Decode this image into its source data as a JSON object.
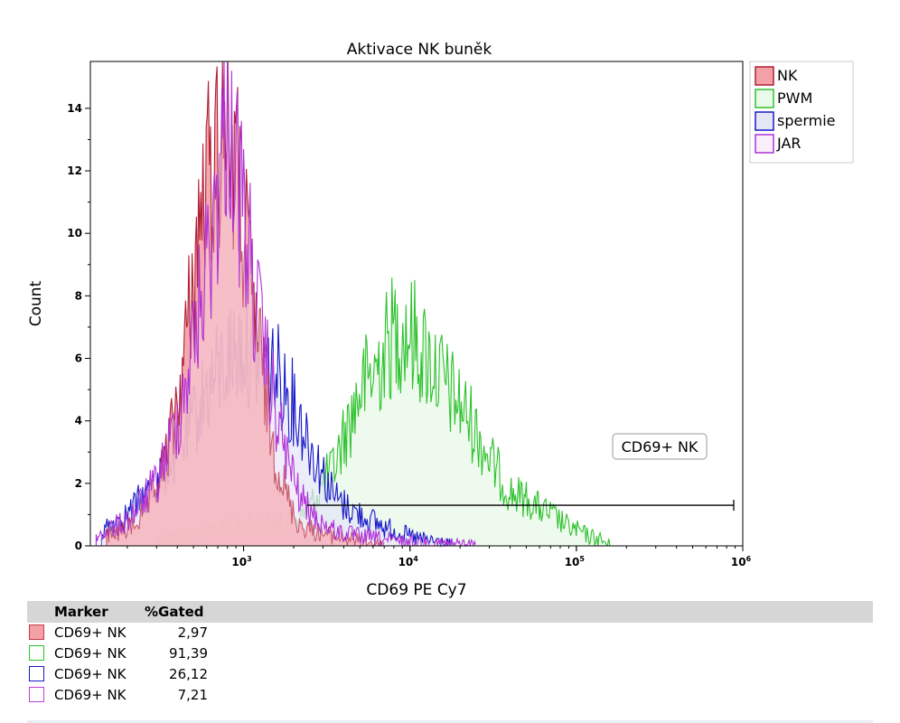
{
  "chart_data": {
    "type": "area",
    "title": "Aktivace NK buněk",
    "xlabel": "CD69 PE Cy7",
    "ylabel": "Count",
    "x_scale": "log",
    "xlim": [
      120,
      1000000
    ],
    "ylim": [
      0,
      15.5
    ],
    "y_ticks": [
      0,
      2,
      4,
      6,
      8,
      10,
      12,
      14
    ],
    "y_tick_labels": [
      "0",
      "2",
      "4",
      "6",
      "8",
      "10",
      "12",
      "14"
    ],
    "x_ticks": [
      1000,
      10000,
      100000,
      1000000
    ],
    "x_tick_labels": [
      {
        "base": "10",
        "exp": "3"
      },
      {
        "base": "10",
        "exp": "4"
      },
      {
        "base": "10",
        "exp": "5"
      },
      {
        "base": "10",
        "exp": "6"
      }
    ],
    "legend_position": "top-right",
    "series": [
      {
        "name": "NK",
        "stroke": "#b21e34",
        "fill": "#f3a0a6",
        "fill_opacity": 0.9,
        "x": [
          150,
          200,
          250,
          300,
          350,
          400,
          450,
          500,
          550,
          600,
          650,
          700,
          750,
          800,
          850,
          900,
          950,
          1000,
          1100,
          1200,
          1300,
          1400,
          1500,
          1700,
          1900,
          2100,
          2300,
          2600,
          3000,
          3500,
          4000,
          4500,
          5000,
          6000,
          7000
        ],
        "y": [
          0.3,
          0.5,
          1.0,
          1.8,
          3.0,
          4.5,
          6.5,
          8.5,
          10.5,
          11.5,
          12.3,
          12.8,
          13.5,
          14.3,
          13.0,
          12.0,
          11.0,
          10.0,
          8.5,
          7.0,
          5.5,
          4.5,
          3.2,
          2.2,
          1.3,
          0.8,
          0.6,
          0.5,
          0.4,
          0.3,
          0.25,
          0.2,
          0.15,
          0.1,
          0
        ]
      },
      {
        "name": "PWM",
        "stroke": "#2ec22e",
        "fill": "#eaf9ea",
        "fill_opacity": 0.8,
        "x": [
          300,
          500,
          800,
          1200,
          1600,
          2000,
          2500,
          3000,
          3500,
          4000,
          4500,
          5000,
          6000,
          7000,
          8000,
          9000,
          10000,
          11000,
          12000,
          13000,
          15000,
          17000,
          20000,
          23000,
          26000,
          30000,
          35000,
          40000,
          50000,
          60000,
          70000,
          80000,
          90000,
          100000,
          120000,
          140000,
          160000
        ],
        "y": [
          0.2,
          0.4,
          0.6,
          0.7,
          0.7,
          0.8,
          1.2,
          2.0,
          2.5,
          3.5,
          4.2,
          5.0,
          5.5,
          6.2,
          6.8,
          7.0,
          6.8,
          6.5,
          6.2,
          6.0,
          5.5,
          5.0,
          4.5,
          4.0,
          3.5,
          2.8,
          2.2,
          1.7,
          1.5,
          1.2,
          1.0,
          0.8,
          0.6,
          0.5,
          0.3,
          0.2,
          0
        ]
      },
      {
        "name": "spermie",
        "stroke": "#1818c8",
        "fill": "#e4e6f6",
        "fill_opacity": 0.7,
        "x": [
          140,
          200,
          300,
          400,
          500,
          600,
          700,
          800,
          900,
          1000,
          1200,
          1400,
          1700,
          2000,
          2300,
          2600,
          3000,
          3500,
          4000,
          5000,
          6000,
          7000,
          8000,
          10000,
          12000,
          14000,
          16000,
          18000
        ],
        "y": [
          0.5,
          1.0,
          2.0,
          3.0,
          4.0,
          5.0,
          5.5,
          6.0,
          6.2,
          6.5,
          6.0,
          5.8,
          5.3,
          4.5,
          3.8,
          3.0,
          2.3,
          1.6,
          1.3,
          1.0,
          0.8,
          0.6,
          0.5,
          0.3,
          0.2,
          0.15,
          0.1,
          0
        ]
      },
      {
        "name": "JAR",
        "stroke": "#b032d8",
        "fill": "#fbeefb",
        "fill_opacity": 0.3,
        "x": [
          130,
          200,
          300,
          400,
          500,
          600,
          700,
          750,
          800,
          850,
          900,
          1000,
          1100,
          1200,
          1400,
          1600,
          1900,
          2200,
          2600,
          3000,
          3500,
          4000,
          5000,
          6000,
          7000,
          8000,
          10000,
          12000,
          15000,
          20000,
          25000
        ],
        "y": [
          0.3,
          0.8,
          2.0,
          4.0,
          6.5,
          9.0,
          11.5,
          12.5,
          14.5,
          13.5,
          12.0,
          10.5,
          9.0,
          7.5,
          5.5,
          4.0,
          2.5,
          1.5,
          1.0,
          0.7,
          0.5,
          0.4,
          0.3,
          0.25,
          0.2,
          0.15,
          0.12,
          0.1,
          0.08,
          0.05,
          0
        ]
      }
    ],
    "gate": {
      "label": "CD69+ NK",
      "x_start": 2400,
      "x_end": 1000000,
      "y": 1.3
    }
  },
  "stats_table": {
    "headers": {
      "marker": "Marker",
      "gated": "%Gated"
    },
    "rows": [
      {
        "marker": "CD69+ NK",
        "value": "2,97",
        "color": "#c83848",
        "fill": "#f3a0a6"
      },
      {
        "marker": "CD69+ NK",
        "value": "91,39",
        "color": "#2ec22e",
        "fill": "#ffffff"
      },
      {
        "marker": "CD69+ NK",
        "value": "26,12",
        "color": "#1818c8",
        "fill": "#ffffff"
      },
      {
        "marker": "CD69+ NK",
        "value": "7,21",
        "color": "#c040d8",
        "fill": "#ffffff"
      }
    ]
  }
}
